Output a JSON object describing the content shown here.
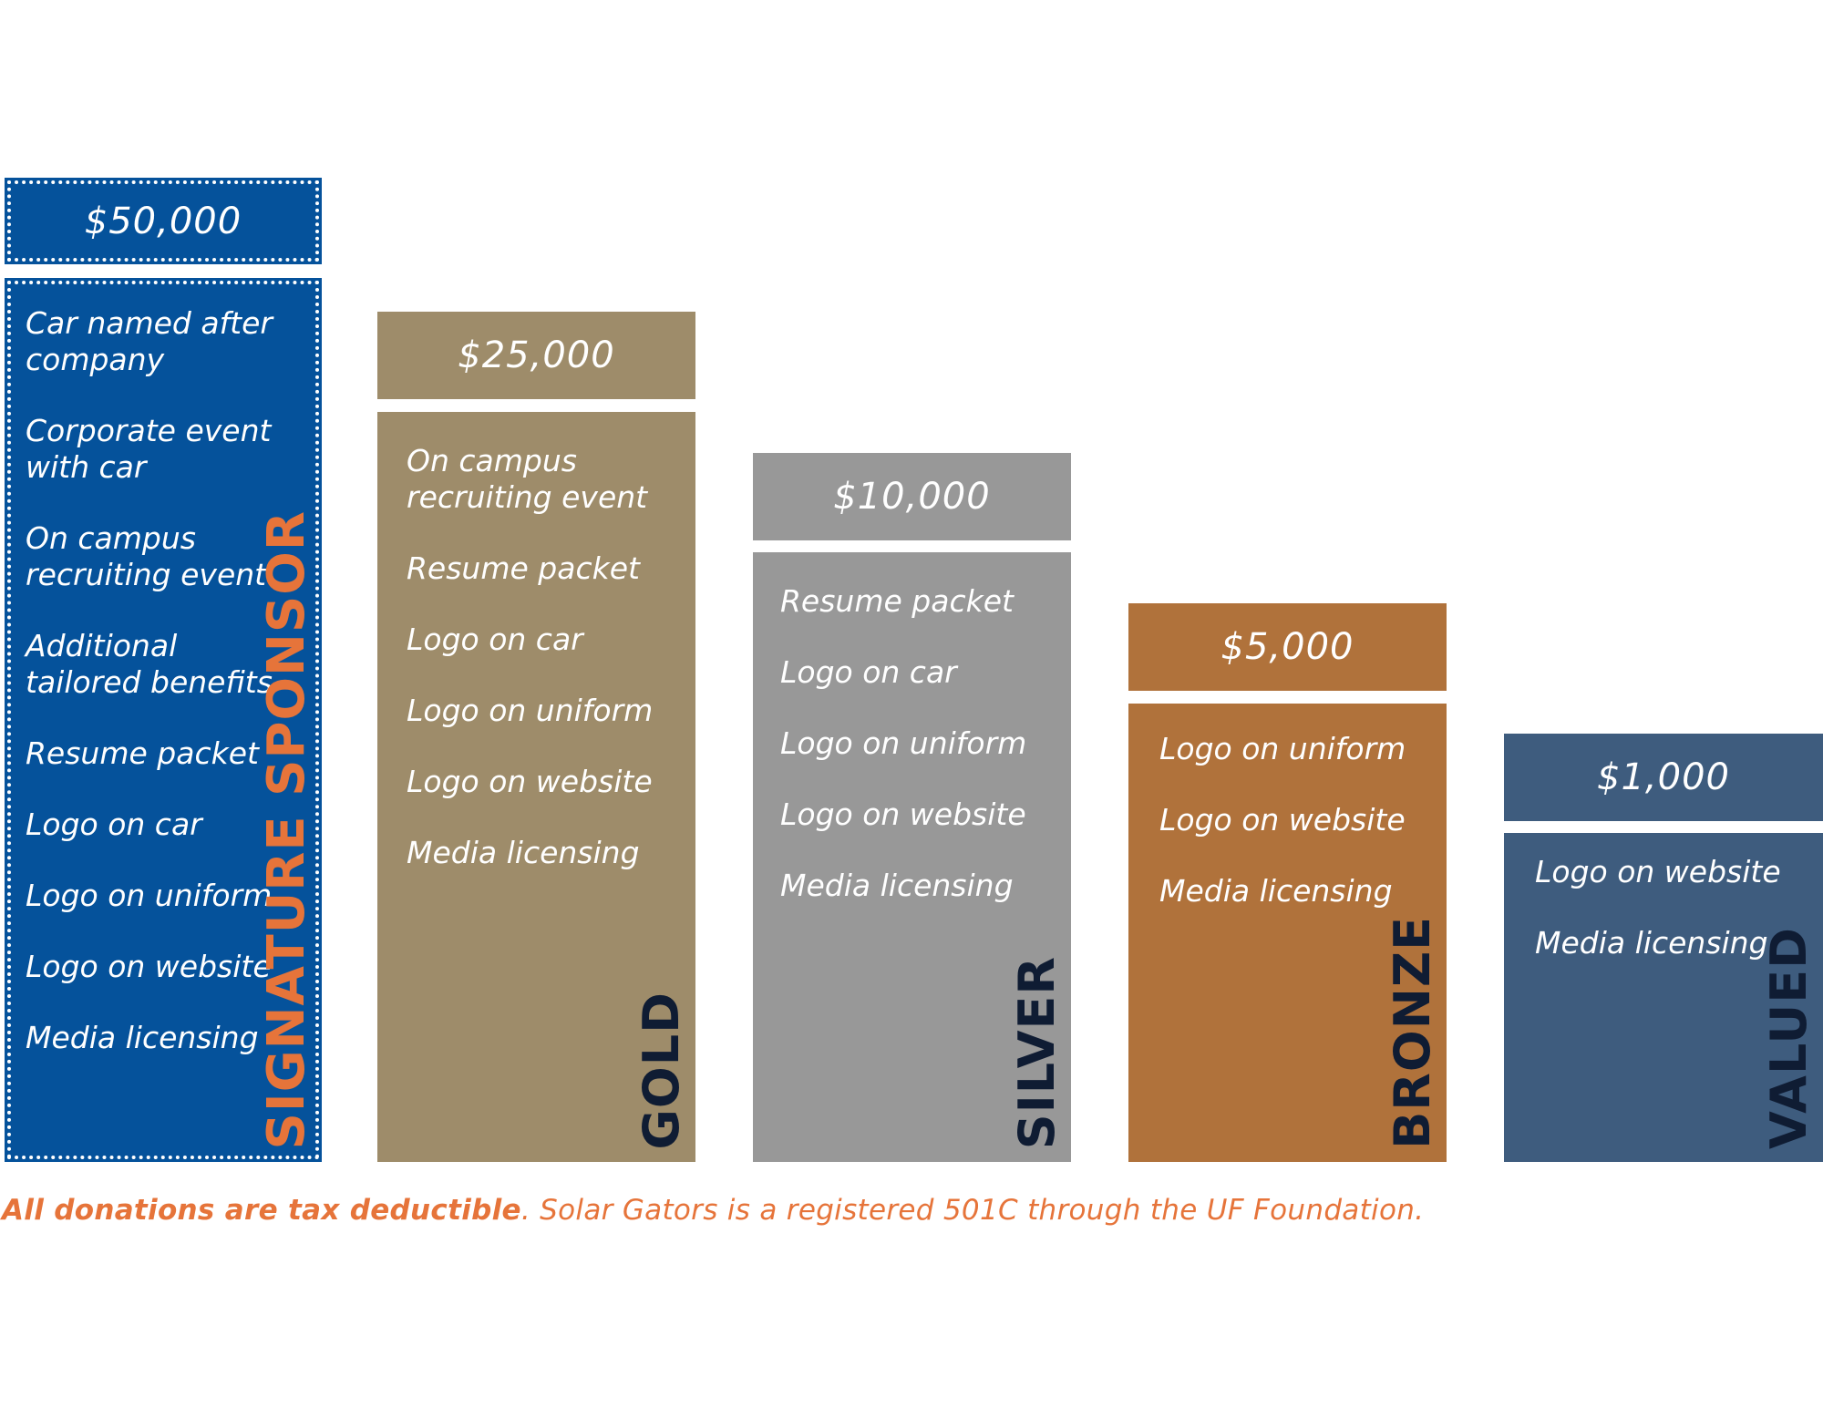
{
  "colors": {
    "signature": "#05529b",
    "gold": "#9e8c6a",
    "silver": "#989898",
    "bronze": "#b0723b",
    "valued": "#3e5c7e",
    "accent_orange": "#e6743a",
    "dark_navy": "#0f1c33"
  },
  "tiers": [
    {
      "name": "SIGNATURE SPONSOR",
      "price": "$50,000",
      "benefits": [
        [
          "Car named after",
          "company"
        ],
        [
          "Corporate event",
          "with car"
        ],
        [
          "On campus",
          "recruiting event"
        ],
        [
          "Additional",
          "tailored benefits"
        ],
        [
          "Resume packet"
        ],
        [
          "Logo on car"
        ],
        [
          "Logo on uniform"
        ],
        [
          "Logo on website"
        ],
        [
          "Media licensing"
        ]
      ]
    },
    {
      "name": "GOLD",
      "price": "$25,000",
      "benefits": [
        [
          "On campus",
          "recruiting event"
        ],
        [
          "Resume packet"
        ],
        [
          "Logo on car"
        ],
        [
          "Logo on uniform"
        ],
        [
          "Logo on website"
        ],
        [
          "Media licensing"
        ]
      ]
    },
    {
      "name": "SILVER",
      "price": "$10,000",
      "benefits": [
        [
          "Resume packet"
        ],
        [
          "Logo on car"
        ],
        [
          "Logo on uniform"
        ],
        [
          "Logo on website"
        ],
        [
          "Media licensing"
        ]
      ]
    },
    {
      "name": "BRONZE",
      "price": "$5,000",
      "benefits": [
        [
          "Logo on uniform"
        ],
        [
          "Logo on website"
        ],
        [
          "Media licensing"
        ]
      ]
    },
    {
      "name": "VALUED",
      "price": "$1,000",
      "benefits": [
        [
          "Logo on website"
        ],
        [
          "Media licensing"
        ]
      ]
    }
  ],
  "footer": {
    "strong": "All donations are tax deductible",
    "rest": ". Solar Gators is a registered 501C through the UF Foundation."
  }
}
